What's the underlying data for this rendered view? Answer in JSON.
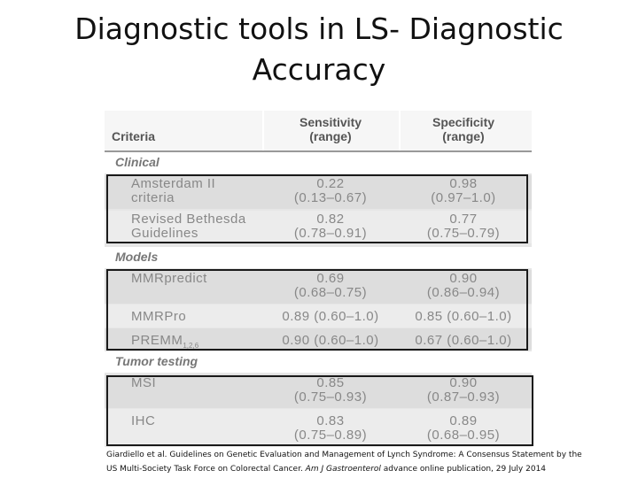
{
  "title": {
    "line1": "Diagnostic tools in LS- Diagnostic",
    "line2": "Accuracy"
  },
  "table": {
    "headers": {
      "criteria": "Criteria",
      "sensitivity_1": "Sensitivity",
      "sensitivity_2": "(range)",
      "specificity_1": "Specificity",
      "specificity_2": "(range)"
    },
    "sections": {
      "clinical": "Clinical",
      "models": "Models",
      "tumor": "Tumor testing"
    },
    "rows": {
      "amsterdam": {
        "name_1": "Amsterdam II",
        "name_2": "criteria",
        "sens_1": "0.22",
        "sens_2": "(0.13–0.67)",
        "spec_1": "0.98",
        "spec_2": "(0.97–1.0)"
      },
      "bethesda": {
        "name_1": "Revised Bethesda",
        "name_2": "Guidelines",
        "sens_1": "0.82",
        "sens_2": "(0.78–0.91)",
        "spec_1": "0.77",
        "spec_2": "(0.75–0.79)"
      },
      "mmrpredict": {
        "name_1": "MMRpredict",
        "sens_1": "0.69",
        "sens_2": "(0.68–0.75)",
        "spec_1": "0.90",
        "spec_2": "(0.86–0.94)"
      },
      "mmrpro": {
        "name": "MMRPro",
        "sens": "0.89 (0.60–1.0)",
        "spec": "0.85 (0.60–1.0)"
      },
      "premm": {
        "name": "PREMM",
        "name_sub": "1,2,6",
        "sens": "0.90 (0.60–1.0)",
        "spec": "0.67 (0.60–1.0)"
      },
      "msi": {
        "name": "MSI",
        "sens_1": "0.85",
        "sens_2": "(0.75–0.93)",
        "spec_1": "0.90",
        "spec_2": "(0.87–0.93)"
      },
      "ihc": {
        "name": "IHC",
        "sens_1": "0.83",
        "sens_2": "(0.75–0.89)",
        "spec_1": "0.89",
        "spec_2": "(0.68–0.95)"
      }
    }
  },
  "citation": {
    "line1": "Giardiello et al. Guidelines on Genetic Evaluation and Management of Lynch Syndrome: A Consensus Statement by the",
    "line2_start": "US Multi-Society Task Force on Colorectal Cancer. ",
    "journal": "Am J Gastroenterol",
    "line2_end": " advance online publication, 29 July 2014"
  }
}
